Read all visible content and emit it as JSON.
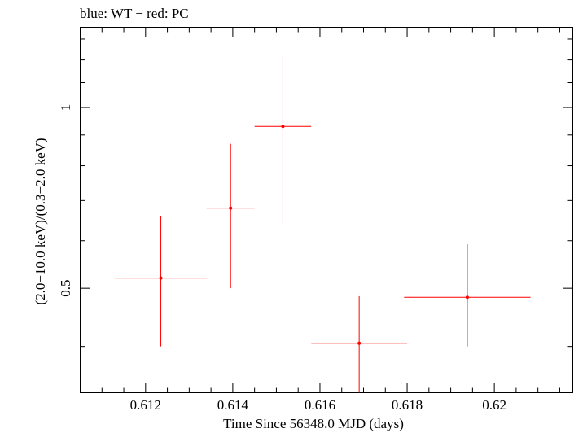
{
  "chart_data": {
    "type": "scatter",
    "title": "blue: WT − red: PC",
    "xlabel": "Time Since 56348.0 MJD (days)",
    "ylabel": "(2.0−10.0 keV)/(0.3−2.0 keV)",
    "x_scale": "linear",
    "y_scale": "log",
    "xlim": [
      0.6105,
      0.6218
    ],
    "ylim": [
      0.335,
      1.36
    ],
    "x_ticks": [
      0.612,
      0.614,
      0.616,
      0.618,
      0.62
    ],
    "x_tick_labels": [
      "0.612",
      "0.614",
      "0.616",
      "0.618",
      "0.62"
    ],
    "y_ticks": [
      0.5,
      1
    ],
    "y_tick_labels": [
      "0.5",
      "1"
    ],
    "series": [
      {
        "name": "PC",
        "color": "#ff0000",
        "points": [
          {
            "x": 0.61235,
            "xerr_lo": 0.00106,
            "xerr_hi": 0.00106,
            "y": 0.52,
            "y_lo": 0.4,
            "y_hi": 0.66
          },
          {
            "x": 0.61395,
            "xerr_lo": 0.00055,
            "xerr_hi": 0.00055,
            "y": 0.68,
            "y_lo": 0.5,
            "y_hi": 0.87
          },
          {
            "x": 0.61515,
            "xerr_lo": 0.00065,
            "xerr_hi": 0.00065,
            "y": 0.93,
            "y_lo": 0.64,
            "y_hi": 1.22
          },
          {
            "x": 0.6169,
            "xerr_lo": 0.0011,
            "xerr_hi": 0.0011,
            "y": 0.405,
            "y_lo": 0.335,
            "y_hi": 0.485
          },
          {
            "x": 0.61938,
            "xerr_lo": 0.00145,
            "xerr_hi": 0.00145,
            "y": 0.483,
            "y_lo": 0.4,
            "y_hi": 0.592
          }
        ]
      }
    ],
    "colors": {
      "axis": "#000000",
      "background": "#ffffff"
    }
  }
}
